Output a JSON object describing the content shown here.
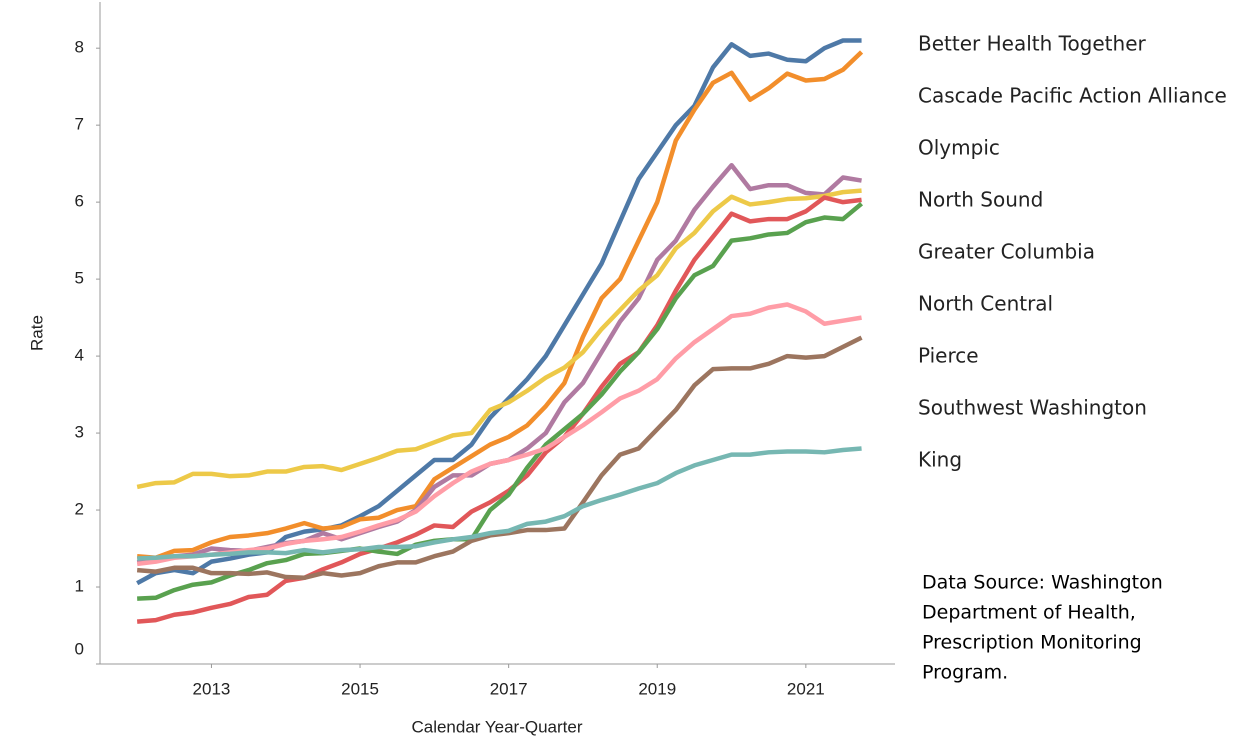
{
  "chart_data": {
    "type": "line",
    "x_label": "Calendar Year-Quarter",
    "y_label": "Rate",
    "x": [
      2012,
      2012.25,
      2012.5,
      2012.75,
      2013,
      2013.25,
      2013.5,
      2013.75,
      2014,
      2014.25,
      2014.5,
      2014.75,
      2015,
      2015.25,
      2015.5,
      2015.75,
      2016,
      2016.25,
      2016.5,
      2016.75,
      2017,
      2017.25,
      2017.5,
      2017.75,
      2018,
      2018.25,
      2018.5,
      2018.75,
      2019,
      2019.25,
      2019.5,
      2019.75,
      2020,
      2020.25,
      2020.5,
      2020.75,
      2021,
      2021.25,
      2021.5,
      2021.75
    ],
    "xlim": [
      2011.5,
      2022.2
    ],
    "xticks": [
      2013,
      2015,
      2017,
      2019,
      2021
    ],
    "ylim": [
      0,
      8.6
    ],
    "yticks": [
      0,
      1,
      2,
      3,
      4,
      5,
      6,
      7,
      8
    ],
    "grid": false,
    "series": [
      {
        "name": "Better Health Together",
        "color": "#4e79a7",
        "values": [
          1.05,
          1.18,
          1.22,
          1.18,
          1.33,
          1.37,
          1.42,
          1.45,
          1.65,
          1.72,
          1.75,
          1.8,
          1.92,
          2.05,
          2.25,
          2.45,
          2.65,
          2.65,
          2.85,
          3.2,
          3.45,
          3.7,
          4.0,
          4.4,
          4.8,
          5.2,
          5.75,
          6.3,
          6.65,
          7.0,
          7.25,
          7.75,
          8.05,
          7.9,
          7.93,
          7.85,
          7.83,
          8.0,
          8.1,
          8.1
        ]
      },
      {
        "name": "Cascade Pacific Action Alliance",
        "color": "#f28e2b",
        "values": [
          1.4,
          1.38,
          1.47,
          1.48,
          1.58,
          1.65,
          1.67,
          1.7,
          1.76,
          1.83,
          1.76,
          1.78,
          1.88,
          1.9,
          2.0,
          2.05,
          2.4,
          2.55,
          2.7,
          2.85,
          2.95,
          3.1,
          3.35,
          3.65,
          4.25,
          4.75,
          5.0,
          5.5,
          6.0,
          6.8,
          7.2,
          7.55,
          7.68,
          7.33,
          7.48,
          7.67,
          7.58,
          7.6,
          7.72,
          7.95
        ]
      },
      {
        "name": "Olympic",
        "color": "#b07aa1",
        "values": [
          1.32,
          1.35,
          1.4,
          1.42,
          1.5,
          1.48,
          1.47,
          1.52,
          1.57,
          1.6,
          1.7,
          1.62,
          1.7,
          1.78,
          1.85,
          2.0,
          2.3,
          2.45,
          2.45,
          2.6,
          2.65,
          2.8,
          3.0,
          3.4,
          3.65,
          4.05,
          4.45,
          4.75,
          5.25,
          5.5,
          5.9,
          6.2,
          6.48,
          6.17,
          6.22,
          6.22,
          6.12,
          6.1,
          6.32,
          6.28
        ]
      },
      {
        "name": "North Sound",
        "color": "#edc948",
        "values": [
          2.3,
          2.35,
          2.36,
          2.47,
          2.47,
          2.44,
          2.45,
          2.5,
          2.5,
          2.56,
          2.57,
          2.52,
          2.6,
          2.68,
          2.77,
          2.79,
          2.88,
          2.97,
          3.0,
          3.3,
          3.4,
          3.55,
          3.72,
          3.85,
          4.05,
          4.35,
          4.6,
          4.85,
          5.05,
          5.4,
          5.6,
          5.88,
          6.07,
          5.97,
          6.0,
          6.04,
          6.05,
          6.08,
          6.13,
          6.15
        ]
      },
      {
        "name": "Greater Columbia",
        "color": "#e15759",
        "values": [
          0.55,
          0.57,
          0.64,
          0.67,
          0.73,
          0.78,
          0.87,
          0.9,
          1.08,
          1.12,
          1.23,
          1.32,
          1.43,
          1.5,
          1.58,
          1.68,
          1.8,
          1.78,
          1.98,
          2.1,
          2.25,
          2.45,
          2.75,
          2.95,
          3.25,
          3.6,
          3.9,
          4.05,
          4.4,
          4.85,
          5.25,
          5.55,
          5.85,
          5.75,
          5.78,
          5.78,
          5.88,
          6.06,
          6.0,
          6.03
        ]
      },
      {
        "name": "North Central",
        "color": "#59a14f",
        "values": [
          0.85,
          0.86,
          0.96,
          1.03,
          1.06,
          1.15,
          1.22,
          1.31,
          1.35,
          1.43,
          1.44,
          1.47,
          1.5,
          1.46,
          1.43,
          1.55,
          1.6,
          1.62,
          1.62,
          2.0,
          2.2,
          2.55,
          2.85,
          3.05,
          3.25,
          3.5,
          3.8,
          4.05,
          4.35,
          4.75,
          5.05,
          5.17,
          5.5,
          5.53,
          5.58,
          5.6,
          5.74,
          5.8,
          5.78,
          5.98
        ]
      },
      {
        "name": "Pierce",
        "color": "#ff9da7",
        "values": [
          1.3,
          1.33,
          1.38,
          1.4,
          1.42,
          1.45,
          1.48,
          1.5,
          1.56,
          1.6,
          1.62,
          1.65,
          1.72,
          1.8,
          1.87,
          1.98,
          2.18,
          2.35,
          2.5,
          2.6,
          2.65,
          2.72,
          2.8,
          2.95,
          3.1,
          3.27,
          3.45,
          3.55,
          3.7,
          3.97,
          4.18,
          4.35,
          4.52,
          4.55,
          4.63,
          4.67,
          4.58,
          4.42,
          4.46,
          4.5
        ]
      },
      {
        "name": "Southwest Washington",
        "color": "#9c755f",
        "values": [
          1.22,
          1.2,
          1.25,
          1.25,
          1.18,
          1.18,
          1.17,
          1.19,
          1.13,
          1.12,
          1.18,
          1.15,
          1.18,
          1.27,
          1.32,
          1.32,
          1.4,
          1.46,
          1.6,
          1.67,
          1.7,
          1.74,
          1.74,
          1.76,
          2.1,
          2.45,
          2.72,
          2.8,
          3.05,
          3.3,
          3.62,
          3.83,
          3.84,
          3.84,
          3.9,
          4.0,
          3.98,
          4.0,
          4.12,
          4.24
        ]
      },
      {
        "name": "King",
        "color": "#76b7b2",
        "values": [
          1.37,
          1.38,
          1.4,
          1.4,
          1.42,
          1.43,
          1.45,
          1.45,
          1.44,
          1.48,
          1.45,
          1.48,
          1.49,
          1.52,
          1.52,
          1.53,
          1.58,
          1.62,
          1.65,
          1.7,
          1.73,
          1.82,
          1.85,
          1.92,
          2.05,
          2.13,
          2.2,
          2.28,
          2.35,
          2.48,
          2.58,
          2.65,
          2.72,
          2.72,
          2.75,
          2.76,
          2.76,
          2.75,
          2.78,
          2.8
        ]
      }
    ],
    "annotations": [
      "Data Source: Washington",
      "Department of Health,",
      "Prescription Monitoring",
      "Program."
    ]
  }
}
